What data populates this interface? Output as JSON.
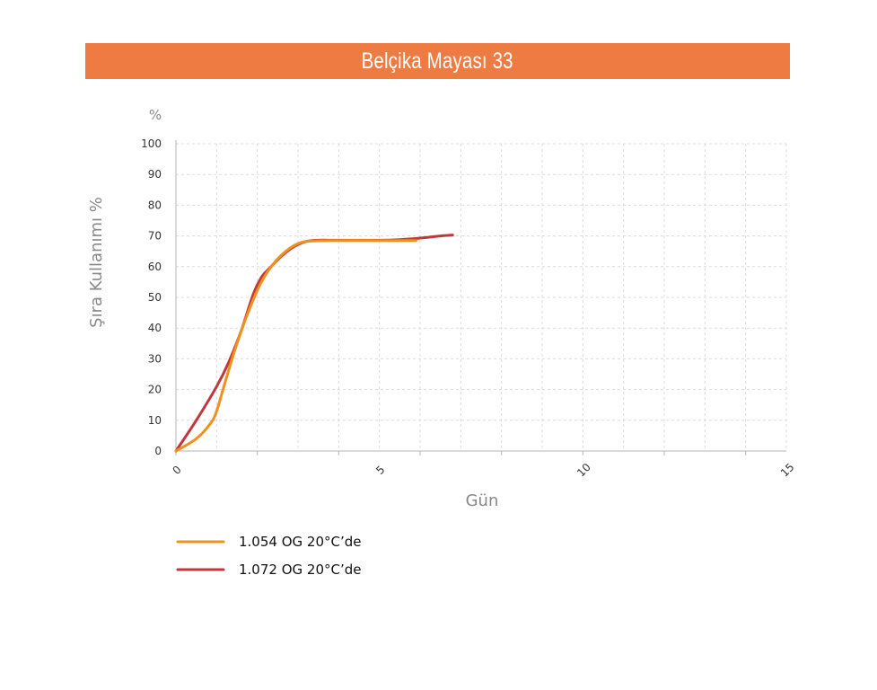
{
  "banner": {
    "title": "Belçika Mayası 33",
    "color": "#ee7b42"
  },
  "chart_data": {
    "type": "line",
    "title": "Belçika Mayası 33",
    "xlabel": "Gün",
    "ylabel": "Şıra Kullanımı %",
    "y_unit_label": "%",
    "xlim": [
      0,
      15
    ],
    "ylim": [
      0,
      100
    ],
    "x_ticks": [
      0,
      5,
      10,
      15
    ],
    "y_ticks": [
      0,
      10,
      20,
      30,
      40,
      50,
      60,
      70,
      80,
      90,
      100
    ],
    "grid": true,
    "legend_position": "bottom-left",
    "series": [
      {
        "name": "1.054 OG 20°C’de",
        "color": "#f0901e",
        "points": [
          [
            0,
            0
          ],
          [
            0.5,
            4
          ],
          [
            0.85,
            9
          ],
          [
            1.0,
            13
          ],
          [
            1.2,
            22
          ],
          [
            1.5,
            35
          ],
          [
            1.8,
            46
          ],
          [
            2.1,
            55
          ],
          [
            2.4,
            61
          ],
          [
            2.7,
            65
          ],
          [
            3.0,
            67.5
          ],
          [
            3.3,
            68.3
          ],
          [
            4.0,
            68.5
          ],
          [
            5.0,
            68.5
          ],
          [
            5.5,
            68.5
          ],
          [
            5.9,
            68.5
          ]
        ]
      },
      {
        "name": "1.072 OG 20°C’de",
        "color": "#c0373d",
        "points": [
          [
            0,
            0
          ],
          [
            0.5,
            10
          ],
          [
            1.0,
            21
          ],
          [
            1.3,
            29
          ],
          [
            1.6,
            39
          ],
          [
            1.9,
            51
          ],
          [
            2.1,
            56.5
          ],
          [
            2.3,
            59.5
          ],
          [
            2.6,
            63.5
          ],
          [
            2.9,
            66.5
          ],
          [
            3.2,
            68.2
          ],
          [
            3.5,
            68.6
          ],
          [
            4.0,
            68.6
          ],
          [
            5.0,
            68.6
          ],
          [
            5.5,
            68.8
          ],
          [
            6.0,
            69.3
          ],
          [
            6.5,
            70
          ],
          [
            6.8,
            70.3
          ]
        ]
      }
    ]
  }
}
